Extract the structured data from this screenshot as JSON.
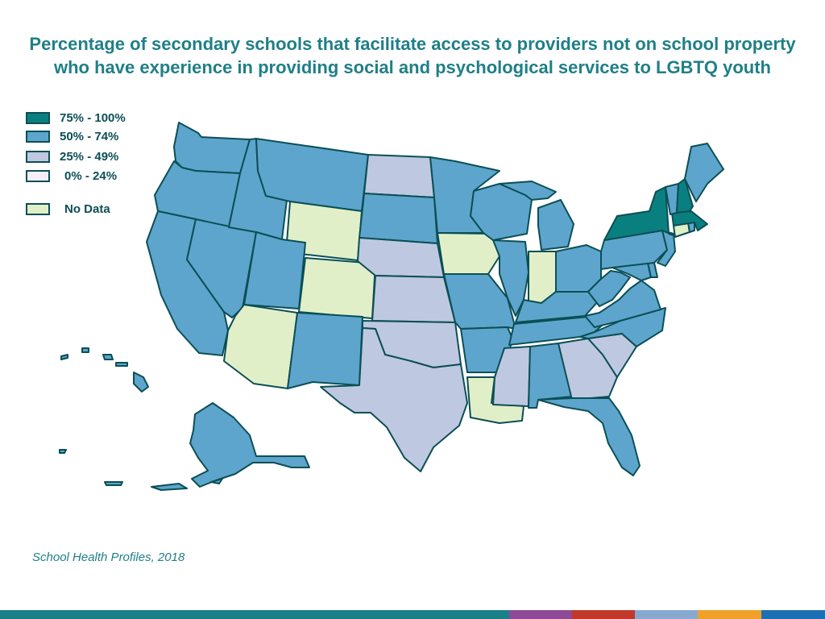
{
  "title": "Percentage of secondary schools that facilitate access to providers not on school property who have experience in providing social and psychological services to LGBTQ youth",
  "legend": [
    {
      "label": "75% - 100%",
      "color": "#0a7f80"
    },
    {
      "label": "50% - 74%",
      "color": "#5da5cc"
    },
    {
      "label": "25% - 49%",
      "color": "#bfc8e1"
    },
    {
      "label": "0% - 24%",
      "color": "#f3eefa"
    },
    {
      "label": "No Data",
      "color": "#e1efc9"
    }
  ],
  "colors": {
    "high": "#0a7f80",
    "mid": "#5da5cc",
    "low": "#bfc8e1",
    "vlow": "#f3eefa",
    "nodata": "#e1efc9",
    "outline": "#0b4f55",
    "title": "#1f7f87"
  },
  "states": {
    "WA": "mid",
    "OR": "mid",
    "CA": "mid",
    "NV": "mid",
    "ID": "mid",
    "MT": "mid",
    "WY": "nodata",
    "UT": "mid",
    "CO": "nodata",
    "AZ": "nodata",
    "NM": "mid",
    "ND": "low",
    "SD": "mid",
    "NE": "low",
    "KS": "low",
    "OK": "low",
    "TX": "low",
    "MN": "mid",
    "IA": "nodata",
    "MO": "mid",
    "AR": "mid",
    "LA": "nodata",
    "WI": "mid",
    "IL": "mid",
    "MI": "mid",
    "IN": "nodata",
    "OH": "mid",
    "KY": "mid",
    "TN": "mid",
    "MS": "low",
    "AL": "mid",
    "GA": "low",
    "FL": "mid",
    "SC": "low",
    "NC": "mid",
    "VA": "mid",
    "WV": "mid",
    "MD": "mid",
    "DE": "mid",
    "PA": "mid",
    "NJ": "mid",
    "NY": "high",
    "CT": "nodata",
    "RI": "mid",
    "MA": "high",
    "VT": "mid",
    "NH": "high",
    "ME": "mid",
    "AK": "mid",
    "HI": "mid"
  },
  "source": "School Health Profiles, 2018",
  "footer_colors": [
    "#1a7f86",
    "#8e4a97",
    "#c0392b",
    "#87a9cf",
    "#f0a12b",
    "#1d6fb4"
  ]
}
